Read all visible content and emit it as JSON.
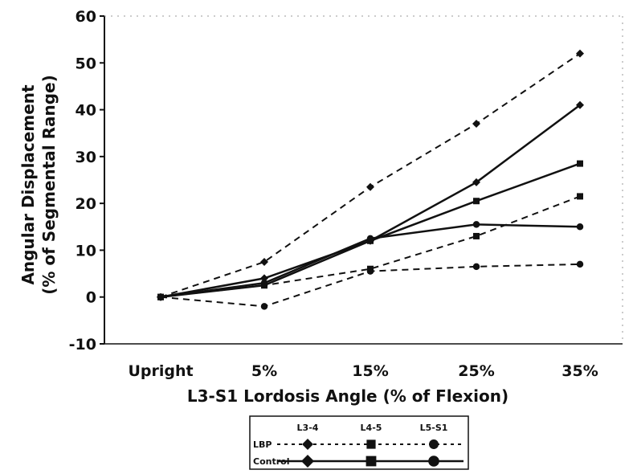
{
  "chart_data": {
    "type": "line",
    "categories": [
      "Upright",
      "5%",
      "15%",
      "25%",
      "35%"
    ],
    "xlabel": "L3-S1 Lordosis Angle (% of Flexion)",
    "ylabel_line1": "Angular Displacement",
    "ylabel_line2": "(% of Segmental Range)",
    "ylim": [
      -10,
      60
    ],
    "yticks": [
      -10,
      0,
      10,
      20,
      30,
      40,
      50,
      60
    ],
    "grid": false,
    "legend": {
      "position": "bottom",
      "columns": [
        "L3-4",
        "L4-5",
        "L5-S1"
      ],
      "rows": [
        "LBP",
        "Control"
      ]
    },
    "series": [
      {
        "group": "LBP",
        "level": "L3-4",
        "marker": "diamond",
        "dash": "dashed",
        "values": [
          0,
          7.5,
          23.5,
          37,
          52
        ]
      },
      {
        "group": "LBP",
        "level": "L4-5",
        "marker": "square",
        "dash": "dashed",
        "values": [
          0,
          2.5,
          6,
          13,
          21.5
        ]
      },
      {
        "group": "LBP",
        "level": "L5-S1",
        "marker": "circle",
        "dash": "dashed",
        "values": [
          0,
          -2,
          5.5,
          6.5,
          7
        ]
      },
      {
        "group": "Control",
        "level": "L3-4",
        "marker": "diamond",
        "dash": "solid",
        "values": [
          0,
          4,
          12,
          24.5,
          41
        ]
      },
      {
        "group": "Control",
        "level": "L4-5",
        "marker": "square",
        "dash": "solid",
        "values": [
          0,
          2.5,
          12,
          20.5,
          28.5
        ]
      },
      {
        "group": "Control",
        "level": "L5-S1",
        "marker": "circle",
        "dash": "solid",
        "values": [
          0,
          3,
          12.5,
          15.5,
          15
        ]
      }
    ],
    "colors": {
      "line": "#111111",
      "axis": "#111111"
    }
  }
}
